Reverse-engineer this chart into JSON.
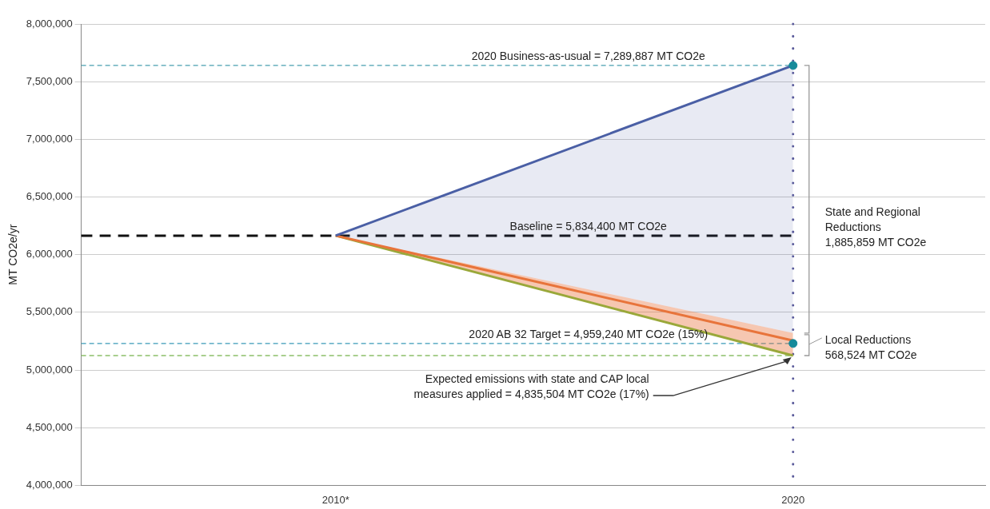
{
  "chart_data": {
    "type": "line",
    "ylabel": "MT CO2e/yr",
    "categories": [
      "2010*",
      "2020"
    ],
    "series": [
      {
        "color": "#4a5fa5",
        "values": [
          6165000,
          7640000
        ],
        "lower": [
          6165000,
          5320000
        ],
        "upper": [
          6165000,
          7640000
        ]
      },
      {
        "color": "#e8743b",
        "values": [
          6165000,
          5255000
        ],
        "lower": [
          6165000,
          5125000
        ],
        "upper": [
          6165000,
          5320000
        ]
      },
      {
        "color": "#9aa83a",
        "values": [
          6165000,
          5125000
        ]
      },
      {
        "type": "scatter",
        "color": "#168a9a",
        "marker": "circle",
        "values": [
          null,
          7640000
        ]
      },
      {
        "type": "scatter",
        "color": "#168a9a",
        "marker": "circle",
        "values": [
          null,
          5230000
        ]
      }
    ],
    "ylim": [
      4000000,
      8000000
    ],
    "yticks": [
      {
        "value": 4000000,
        "label": "4,000,000"
      },
      {
        "value": 4500000,
        "label": "4,500,000"
      },
      {
        "value": 5000000,
        "label": "5,000,000"
      },
      {
        "value": 5500000,
        "label": "5,500,000"
      },
      {
        "value": 6000000,
        "label": "6,000,000"
      },
      {
        "value": 6500000,
        "label": "6,500,000"
      },
      {
        "value": 7000000,
        "label": "7,000,000"
      },
      {
        "value": 7500000,
        "label": "7,500,000"
      },
      {
        "value": 8000000,
        "label": "8,000,000"
      }
    ],
    "grid": "y",
    "ref_lines": [
      {
        "axis": "y",
        "value": 7640000,
        "color": "#4aa0b0",
        "line_style": "dashed"
      },
      {
        "axis": "y",
        "value": 6165000,
        "color": "#111111",
        "line_style": "dashed"
      },
      {
        "axis": "y",
        "value": 5230000,
        "color": "#3a9ab8",
        "line_style": "dashed"
      },
      {
        "axis": "y",
        "value": 5125000,
        "color": "#8cc06a",
        "line_style": "dashed"
      },
      {
        "axis": "x",
        "value": "2020",
        "color": "#5b5b9b",
        "line_style": "dotted"
      }
    ],
    "annotations": [
      "2020 Business-as-usual = 7,289,887 MT CO2e",
      "Baseline = 5,834,400 MT CO2e",
      "2020 AB 32 Target = 4,959,240 MT CO2e (15%)",
      {
        "text": "State and Regional\nReductions\n1,885,859 MT CO2e",
        "x": "2020",
        "y": 6230000
      },
      {
        "text": "Local Reductions\n568,524 MT CO2e",
        "x": "2020",
        "y": 5190000
      },
      {
        "text": "Expected emissions with state and CAP local\nmeasures applied = 4,835,504 MT CO2e (17%)",
        "x": "2020",
        "y": 5125000
      }
    ]
  }
}
